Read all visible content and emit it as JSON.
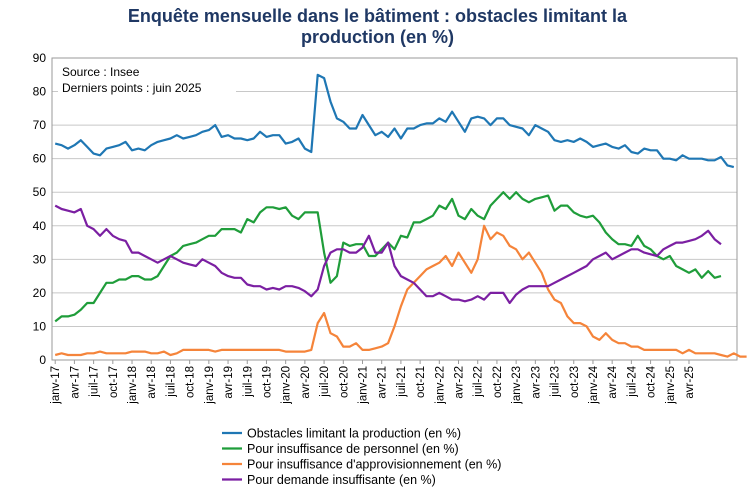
{
  "chart_data": {
    "type": "line",
    "title_line1": "Enquête mensuelle dans le bâtiment : obstacles limitant la",
    "title_line2": "production (en %)",
    "source_line1": "Source  : Insee",
    "source_line2": "Derniers points  : juin 2025",
    "ylim": [
      0,
      90
    ],
    "yticks": [
      "0",
      "10",
      "20",
      "30",
      "40",
      "50",
      "60",
      "70",
      "80",
      "90"
    ],
    "xticks": [
      "janv-17",
      "avr-17",
      "juil-17",
      "oct-17",
      "janv-18",
      "avr-18",
      "juil-18",
      "oct-18",
      "janv-19",
      "avr-19",
      "juil-19",
      "oct-19",
      "janv-20",
      "avr-20",
      "juil-20",
      "oct-20",
      "janv-21",
      "avr-21",
      "juil-21",
      "oct-21",
      "janv-22",
      "avr-22",
      "juil-22",
      "oct-22",
      "janv-23",
      "avr-23",
      "juil-23",
      "oct-23",
      "janv-24",
      "avr-24",
      "juil-24",
      "oct-24",
      "janv-25",
      "avr-25"
    ],
    "start": "janv-17",
    "end": "juin-25",
    "legend_position": "bottom",
    "series": [
      {
        "name": "Obstacles limitant la production (en %)",
        "color": "#1f77b4",
        "values": [
          64.5,
          64,
          63,
          64,
          65.5,
          63.5,
          61.5,
          61,
          63,
          63.5,
          64,
          65,
          62.5,
          63,
          62.5,
          64,
          65,
          65.5,
          66,
          67,
          66,
          66.5,
          67,
          68,
          68.5,
          70,
          66.5,
          67,
          66,
          66,
          65.5,
          66,
          68,
          66.5,
          67,
          67,
          64.5,
          65,
          66,
          63,
          62,
          85,
          84,
          77,
          72,
          71,
          69,
          69,
          73,
          70,
          67,
          68,
          66.5,
          69,
          66,
          69,
          69,
          70,
          70.5,
          70.5,
          72,
          71,
          74,
          71,
          68,
          72,
          72.5,
          72,
          70,
          72,
          72,
          70,
          69.5,
          69,
          67,
          70,
          69,
          68,
          65.5,
          65,
          65.5,
          65,
          66,
          65,
          63.5,
          64,
          64.5,
          63.5,
          63,
          64,
          62,
          61.5,
          63,
          62.5,
          62.5,
          60,
          60,
          59.5,
          61,
          60,
          60,
          60,
          59.5,
          59.5,
          60.5,
          58,
          57.5
        ]
      },
      {
        "name": "Pour insuffisance de personnel (en %)",
        "color": "#1f9d3a",
        "values": [
          11.5,
          13,
          13,
          13.5,
          15,
          17,
          17,
          20,
          23,
          23,
          24,
          24,
          25,
          25,
          24,
          24,
          25,
          28,
          31,
          32,
          34,
          34.5,
          35,
          36,
          37,
          37,
          39,
          39,
          39,
          38,
          42,
          41,
          44,
          45.5,
          45.5,
          45,
          45.5,
          43,
          42,
          44,
          44,
          44,
          32,
          23,
          25,
          35,
          34,
          34.5,
          34.5,
          31,
          31,
          33,
          35,
          33,
          37,
          36.5,
          41,
          41,
          42,
          43,
          46,
          45,
          48,
          43,
          42,
          45,
          43,
          42,
          46,
          48,
          50,
          48,
          50,
          48,
          47,
          48,
          48.5,
          49,
          44.5,
          46,
          46,
          44,
          43,
          42.5,
          43,
          41,
          38,
          36,
          34.5,
          34.5,
          34,
          37,
          34,
          33,
          31,
          30,
          31,
          28,
          27,
          26,
          27,
          24.5,
          26.5,
          24.5,
          25
        ]
      },
      {
        "name": "Pour insuffisance d'approvisionnement (en %)",
        "color": "#f5843a",
        "values": [
          1.5,
          2,
          1.5,
          1.5,
          1.5,
          2,
          2,
          2.5,
          2,
          2,
          2,
          2,
          2.5,
          2.5,
          2.5,
          2,
          2,
          2.5,
          1.5,
          2,
          3,
          3,
          3,
          3,
          3,
          2.5,
          3,
          3,
          3,
          3,
          3,
          3,
          3,
          3,
          3,
          3,
          2.5,
          2.5,
          2.5,
          2.5,
          3,
          11,
          14,
          8,
          7,
          4,
          4,
          5,
          3,
          3,
          3.5,
          4,
          5,
          10,
          16,
          21,
          23,
          25,
          27,
          28,
          29,
          31,
          28,
          32,
          29,
          26,
          30,
          40,
          36,
          38,
          37,
          34,
          33,
          30,
          32,
          29,
          26,
          21,
          18,
          17,
          13,
          11,
          11,
          10,
          7,
          6,
          8,
          6,
          5,
          5,
          4,
          4,
          3,
          3,
          3,
          3,
          3,
          3,
          2,
          3,
          2,
          2,
          2,
          2,
          1.5,
          1,
          2,
          1,
          1
        ]
      },
      {
        "name": "Pour demande insuffisante (en %)",
        "color": "#7b1fa2",
        "values": [
          46,
          45,
          44.5,
          44,
          45,
          40,
          39,
          37,
          39,
          37,
          36,
          35.5,
          32,
          32,
          31,
          30,
          29,
          30,
          31,
          30,
          29,
          28.5,
          28,
          30,
          29,
          28,
          26,
          25,
          24.5,
          24.5,
          22.5,
          22,
          22,
          21,
          21.5,
          21,
          22,
          22,
          21.5,
          20.5,
          19,
          21,
          28,
          32,
          33,
          33,
          32,
          32,
          33.5,
          37,
          32,
          32,
          35,
          28,
          25,
          24,
          23,
          21,
          19,
          19,
          20,
          19,
          18,
          18,
          17.5,
          18,
          19,
          18,
          20,
          20,
          20,
          17,
          19.5,
          21,
          22,
          22,
          22,
          22,
          23,
          24,
          25,
          26,
          27,
          28,
          30,
          31,
          32,
          30,
          31,
          32,
          33,
          33,
          32,
          31.5,
          31,
          33,
          34,
          35,
          35,
          35.5,
          36,
          37,
          38.5,
          36,
          34.5
        ]
      }
    ]
  }
}
